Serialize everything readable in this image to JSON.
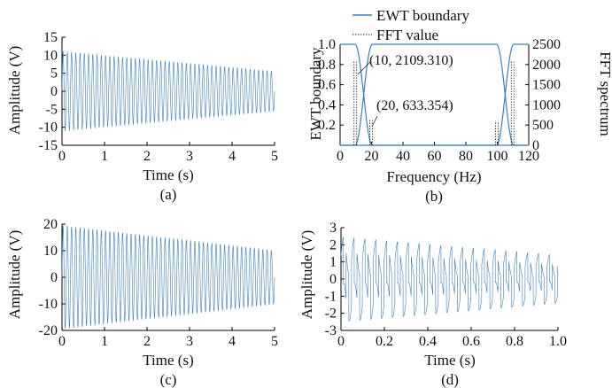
{
  "colors": {
    "signal": "#3a7fc4",
    "boundary": "#3a7fc4",
    "fft": "#222222"
  },
  "chart_data": [
    {
      "id": "a",
      "type": "line",
      "caption": "(a)",
      "xlabel": "Time (s)",
      "ylabel": "Amplitude (V)",
      "xlim": [
        0,
        5
      ],
      "ylim": [
        -15,
        15
      ],
      "xticks": [
        "0",
        "1",
        "2",
        "3",
        "4",
        "5"
      ],
      "yticks": [
        "-15",
        "-10",
        "-5",
        "0",
        "5",
        "10",
        "15"
      ],
      "series": [
        {
          "kind": "decaying_sine",
          "amp_start": 11,
          "amp_end": 5.5,
          "cycles": 50,
          "t_end": 5
        }
      ]
    },
    {
      "id": "b",
      "type": "line",
      "caption": "(b)",
      "xlabel": "Frequency (Hz)",
      "ylabel": "EWT boundary",
      "y2label": "FFT spectrum",
      "xlim": [
        0,
        120
      ],
      "ylim": [
        0,
        1
      ],
      "y2lim": [
        0,
        2500
      ],
      "xticks": [
        "0",
        "20",
        "40",
        "60",
        "80",
        "100",
        "120"
      ],
      "yticks": [
        "0.2",
        "0.4",
        "0.6",
        "0.8",
        "1.0"
      ],
      "y2ticks": [
        "0",
        "500",
        "1000",
        "1500",
        "2000",
        "2500"
      ],
      "legend": [
        "EWT boundary",
        "FFT value"
      ],
      "annotations": [
        "(10, 2109.310)",
        "(20, 633.354)"
      ],
      "fft_peaks": [
        {
          "x": 10,
          "y": 2109.31
        },
        {
          "x": 20,
          "y": 633.354
        },
        {
          "x": 100,
          "y": 600
        },
        {
          "x": 110,
          "y": 2109.31
        }
      ],
      "boundaries": [
        15,
        105
      ]
    },
    {
      "id": "c",
      "type": "line",
      "caption": "(c)",
      "xlabel": "Time (s)",
      "ylabel": "Amplitude (V)",
      "xlim": [
        0,
        5
      ],
      "ylim": [
        -20,
        20
      ],
      "xticks": [
        "0",
        "1",
        "2",
        "3",
        "4",
        "5"
      ],
      "yticks": [
        "-20",
        "-10",
        "0",
        "10",
        "20"
      ],
      "series": [
        {
          "kind": "decaying_sine",
          "amp_start": 19.5,
          "amp_end": 10,
          "cycles": 50,
          "t_end": 5
        }
      ]
    },
    {
      "id": "d",
      "type": "line",
      "caption": "(d)",
      "xlabel": "Time (s)",
      "ylabel": "Amplitude (V)",
      "xlim": [
        0,
        1
      ],
      "ylim": [
        -3,
        3
      ],
      "xticks": [
        "0",
        "0.2",
        "0.4",
        "0.6",
        "0.8",
        "1.0"
      ],
      "yticks": [
        "-3",
        "-2",
        "-1",
        "0",
        "1",
        "2",
        "3"
      ],
      "series": [
        {
          "kind": "decaying_square",
          "amp_start": 2.5,
          "amp_end": 1.4,
          "cycles": 20,
          "t_end": 1
        }
      ]
    }
  ]
}
